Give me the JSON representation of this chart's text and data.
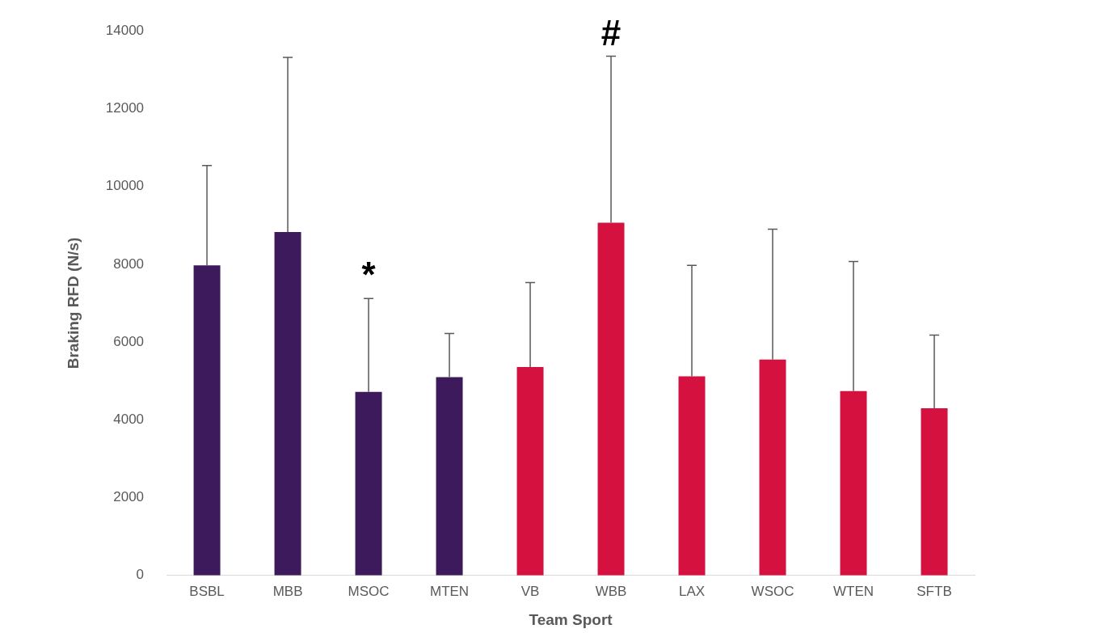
{
  "chart_data": {
    "type": "bar",
    "xlabel": "Team Sport",
    "ylabel": "Braking RFD (N/s)",
    "categories": [
      "BSBL",
      "MBB",
      "MSOC",
      "MTEN",
      "VB",
      "WBB",
      "LAX",
      "WSOC",
      "WTEN",
      "SFTB"
    ],
    "values": [
      7970,
      8830,
      4720,
      5100,
      5360,
      9070,
      5120,
      5550,
      4740,
      4300
    ],
    "colors": [
      "#3d1a5c",
      "#3d1a5c",
      "#3d1a5c",
      "#3d1a5c",
      "#d51140",
      "#d51140",
      "#d51140",
      "#d51140",
      "#d51140",
      "#d51140"
    ],
    "errors": [
      [
        7970,
        10540
      ],
      [
        8830,
        13320
      ],
      [
        4720,
        7120
      ],
      [
        5100,
        6220
      ],
      [
        5360,
        7530
      ],
      [
        9070,
        13350
      ],
      [
        5120,
        7970
      ],
      [
        5550,
        8900
      ],
      [
        4740,
        8070
      ],
      [
        4300,
        6180
      ]
    ],
    "ylim": [
      0,
      14000
    ],
    "yticks": [
      0,
      2000,
      4000,
      6000,
      8000,
      10000,
      12000,
      14000
    ],
    "grid": false,
    "legend": false,
    "annotations": [
      {
        "text": "*",
        "x": "MSOC",
        "y": 7120
      },
      {
        "text": "#",
        "x": "WBB",
        "y": 13350
      }
    ]
  }
}
